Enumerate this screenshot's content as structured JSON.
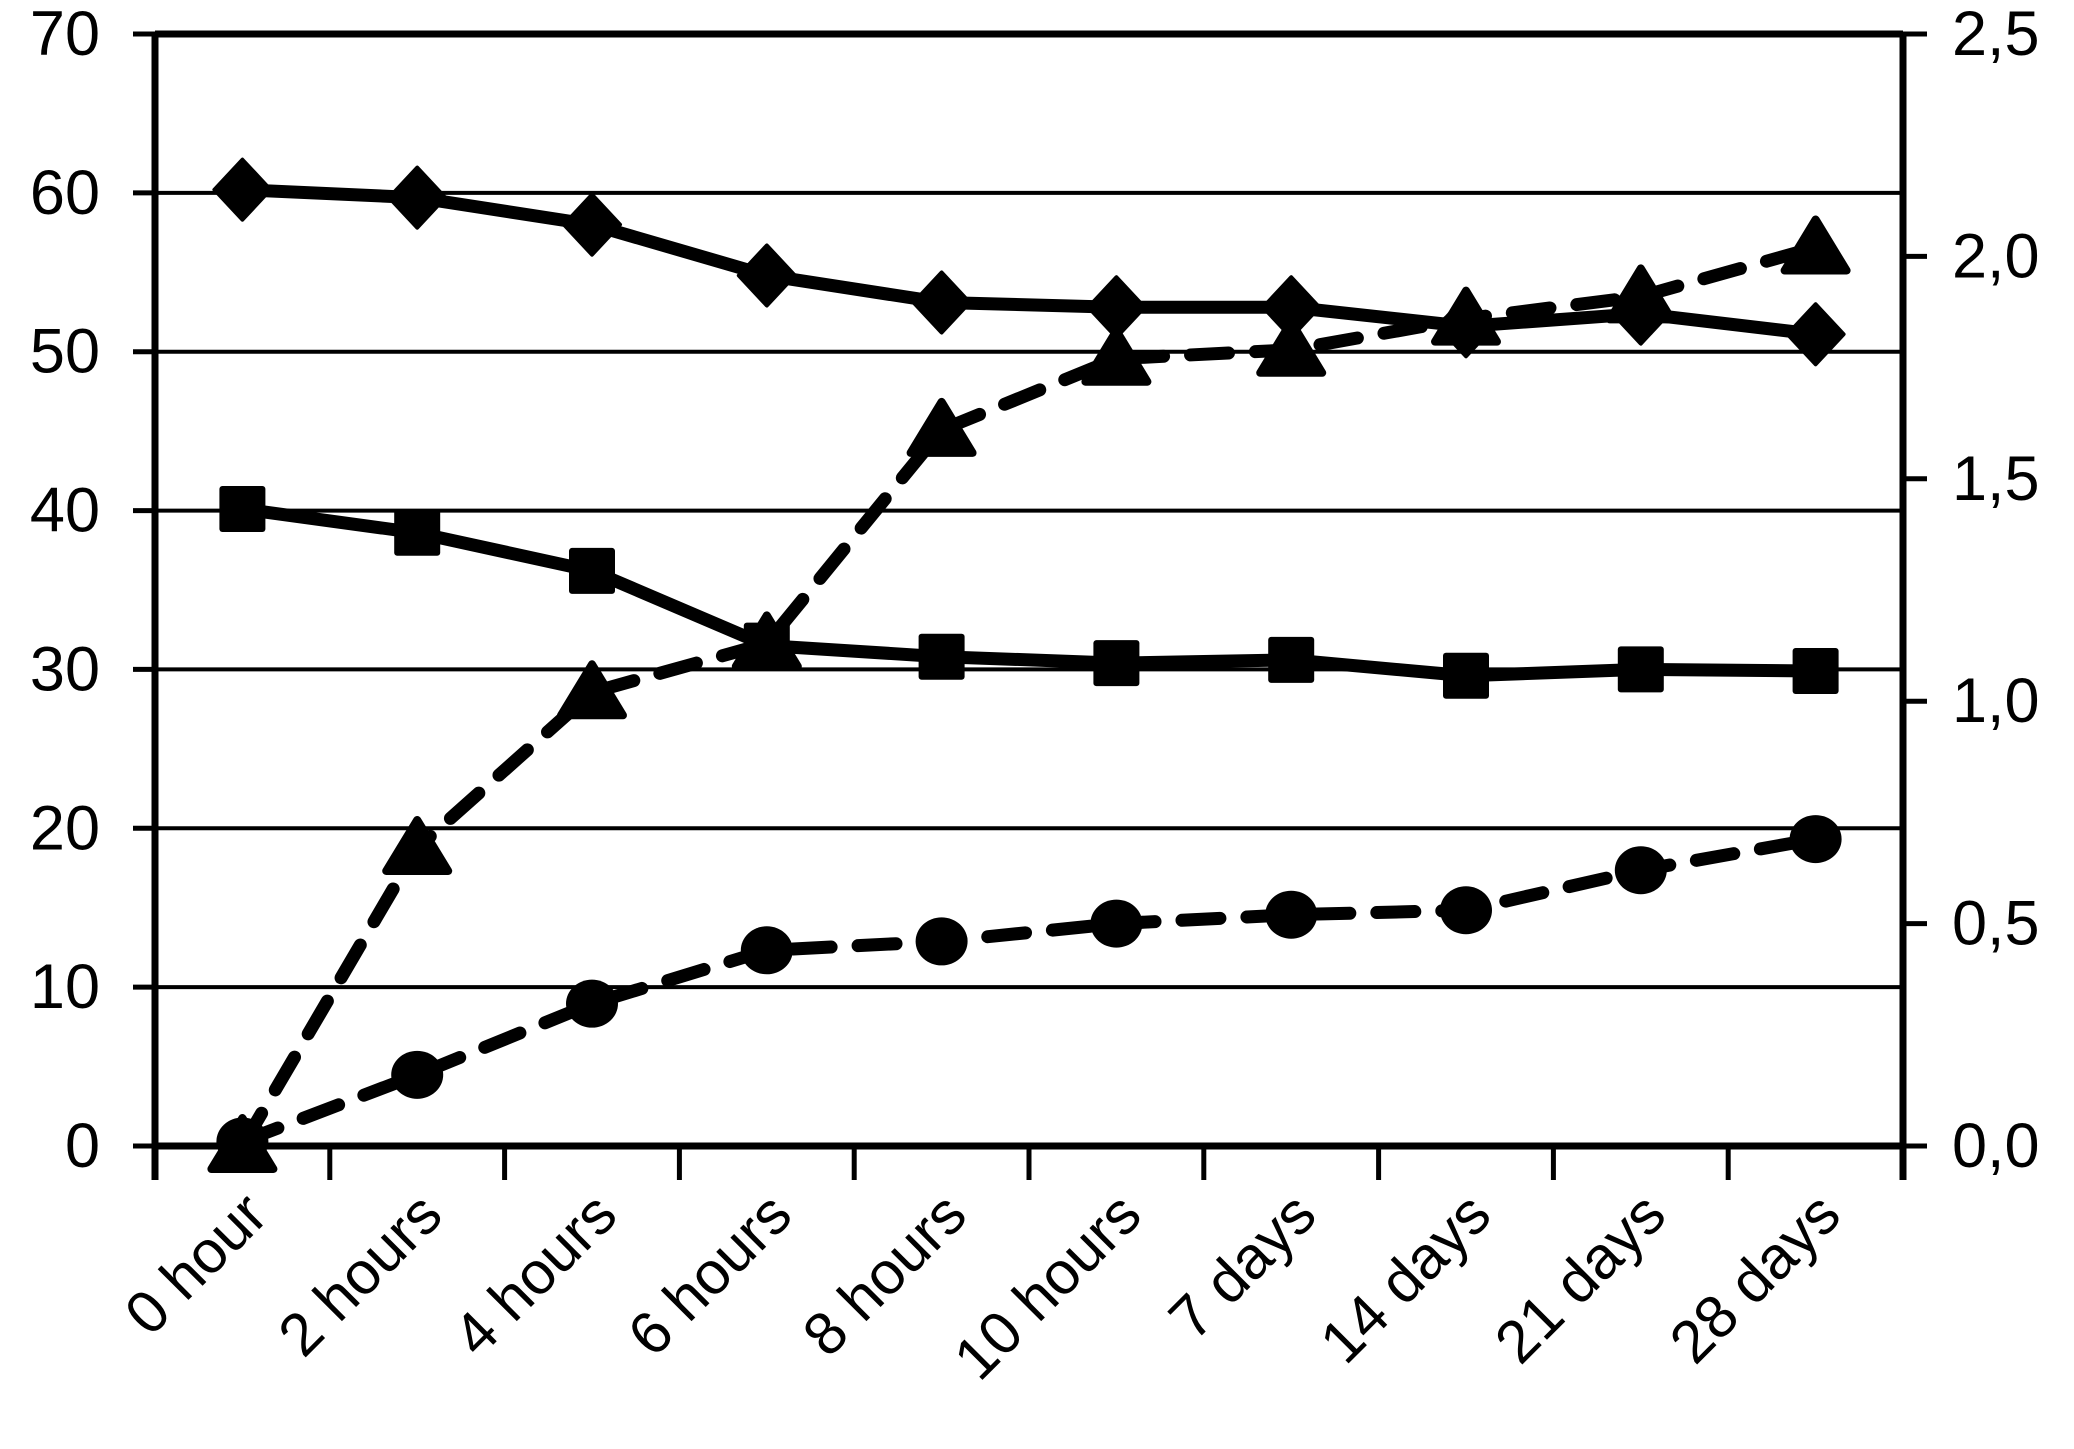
{
  "chart_data": {
    "type": "line",
    "title": "",
    "xlabel": "",
    "ylabel_left": "",
    "ylabel_right": "",
    "grid": true,
    "legend": false,
    "background_color": "#ffffff",
    "foreground_color": "#000000",
    "categories": [
      "0 hour",
      "2 hours",
      "4 hours",
      "6 hours",
      "8 hours",
      "10 hours",
      "7 days",
      "14 days",
      "21 days",
      "28 days"
    ],
    "left_axis": {
      "min": 0,
      "max": 70,
      "step": 10,
      "tick_labels": [
        "70",
        "60",
        "50",
        "40",
        "30",
        "20",
        "10",
        "0"
      ]
    },
    "right_axis": {
      "min": 0,
      "max": 2.5,
      "step": 0.5,
      "tick_labels": [
        "2,5",
        "2,0",
        "1,5",
        "1,0",
        "0,5",
        "0,0"
      ]
    },
    "series": [
      {
        "name": "diamond-solid-series",
        "axis": "left",
        "marker": "diamond",
        "line": "solid",
        "values": [
          60.2,
          59.7,
          58.0,
          54.8,
          53.1,
          52.8,
          52.8,
          51.6,
          52.4,
          51.1
        ]
      },
      {
        "name": "square-solid-series",
        "axis": "left",
        "marker": "square",
        "line": "solid",
        "values": [
          40.1,
          38.6,
          36.2,
          31.5,
          30.8,
          30.4,
          30.6,
          29.6,
          30.0,
          29.9
        ]
      },
      {
        "name": "triangle-dashed-series",
        "axis": "right",
        "marker": "triangle",
        "line": "dashed",
        "values": [
          0.0,
          0.67,
          1.02,
          1.13,
          1.61,
          1.77,
          1.79,
          1.86,
          1.91,
          2.02
        ]
      },
      {
        "name": "circle-dashed-series",
        "axis": "right",
        "marker": "circle",
        "line": "dashed",
        "values": [
          0.01,
          0.16,
          0.32,
          0.44,
          0.46,
          0.5,
          0.52,
          0.53,
          0.62,
          0.69
        ]
      }
    ]
  }
}
